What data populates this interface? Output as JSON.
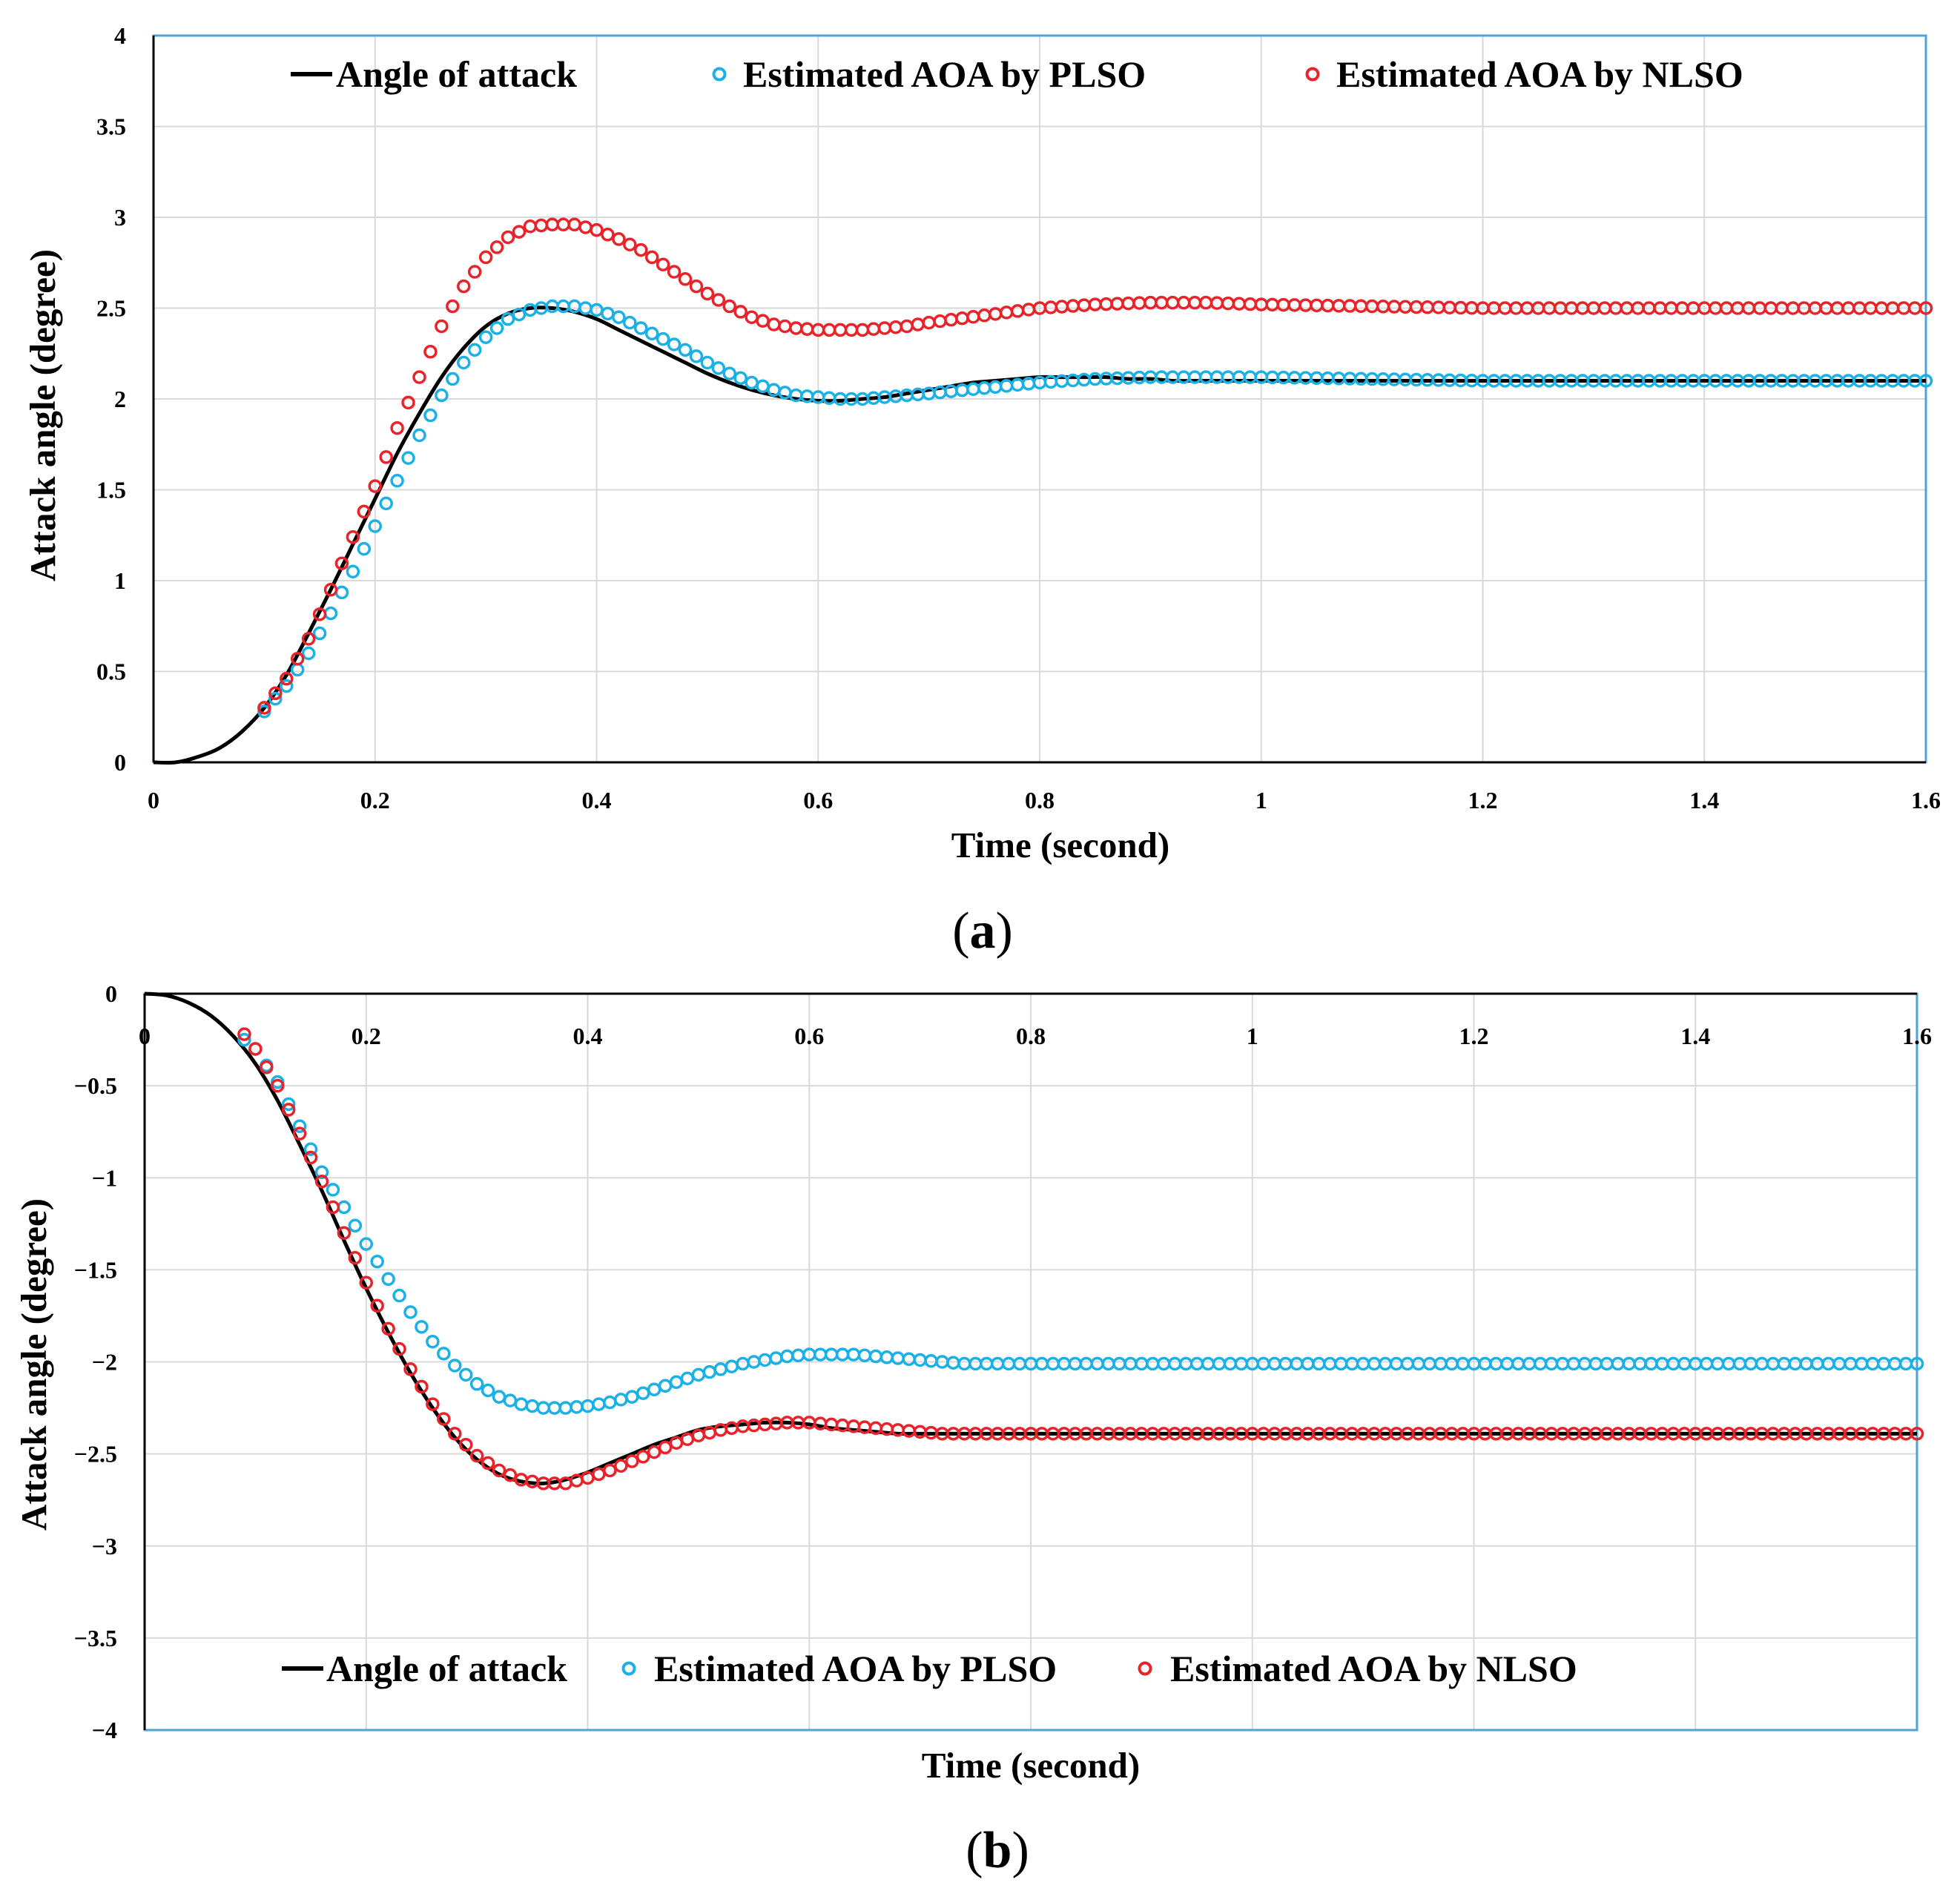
{
  "chart_data": [
    {
      "type": "line",
      "panel": "a",
      "panel_label": "a",
      "title": "",
      "xlabel": "Time (second)",
      "ylabel": "Attack angle (degree)",
      "xlim": [
        0,
        1.6
      ],
      "ylim": [
        0,
        4
      ],
      "xticks": [
        "0",
        "0.2",
        "0.4",
        "0.6",
        "0.8",
        "1",
        "1.2",
        "1.4",
        "1.6"
      ],
      "yticks": [
        "0",
        "0.5",
        "1",
        "1.5",
        "2",
        "2.5",
        "3",
        "3.5",
        "4"
      ],
      "legend_position": "top",
      "series": [
        {
          "name": "Angle of attack",
          "style": "line",
          "color": "#000000",
          "x": [
            0,
            0.02,
            0.04,
            0.06,
            0.08,
            0.1,
            0.12,
            0.14,
            0.16,
            0.18,
            0.2,
            0.22,
            0.24,
            0.26,
            0.28,
            0.3,
            0.32,
            0.34,
            0.36,
            0.38,
            0.4,
            0.42,
            0.44,
            0.46,
            0.48,
            0.5,
            0.52,
            0.54,
            0.56,
            0.58,
            0.6,
            0.62,
            0.64,
            0.66,
            0.68,
            0.7,
            0.72,
            0.74,
            0.76,
            0.78,
            0.8,
            0.82,
            0.84,
            0.86,
            0.88,
            0.9,
            0.92,
            0.94,
            0.96,
            0.98,
            1.0,
            1.05,
            1.1,
            1.15,
            1.2,
            1.25,
            1.3,
            1.35,
            1.4,
            1.45,
            1.5,
            1.55,
            1.6
          ],
          "y": [
            0,
            0.0,
            0.03,
            0.08,
            0.17,
            0.3,
            0.48,
            0.71,
            0.95,
            1.2,
            1.45,
            1.7,
            1.92,
            2.12,
            2.28,
            2.4,
            2.47,
            2.5,
            2.5,
            2.48,
            2.44,
            2.38,
            2.32,
            2.26,
            2.2,
            2.14,
            2.09,
            2.05,
            2.02,
            2.0,
            1.99,
            1.99,
            2.0,
            2.01,
            2.03,
            2.05,
            2.07,
            2.09,
            2.1,
            2.11,
            2.12,
            2.12,
            2.12,
            2.12,
            2.11,
            2.11,
            2.1,
            2.1,
            2.1,
            2.1,
            2.1,
            2.1,
            2.1,
            2.1,
            2.1,
            2.1,
            2.1,
            2.1,
            2.1,
            2.1,
            2.1,
            2.1,
            2.1
          ]
        },
        {
          "name": "Estimated AOA by PLSO",
          "style": "markers",
          "color": "#1bb0e6",
          "x": [
            0.1,
            0.12,
            0.14,
            0.16,
            0.18,
            0.2,
            0.22,
            0.24,
            0.26,
            0.28,
            0.3,
            0.32,
            0.34,
            0.36,
            0.38,
            0.4,
            0.42,
            0.44,
            0.46,
            0.48,
            0.5,
            0.52,
            0.54,
            0.56,
            0.58,
            0.6,
            0.62,
            0.64,
            0.66,
            0.68,
            0.7,
            0.75,
            0.8,
            0.85,
            0.9,
            0.95,
            1.0,
            1.1,
            1.2,
            1.3,
            1.4,
            1.5,
            1.6
          ],
          "y": [
            0.28,
            0.42,
            0.6,
            0.82,
            1.05,
            1.3,
            1.55,
            1.8,
            2.02,
            2.2,
            2.34,
            2.44,
            2.49,
            2.51,
            2.51,
            2.49,
            2.45,
            2.39,
            2.33,
            2.27,
            2.2,
            2.14,
            2.09,
            2.05,
            2.02,
            2.01,
            2.0,
            2.0,
            2.01,
            2.02,
            2.03,
            2.06,
            2.09,
            2.11,
            2.12,
            2.12,
            2.12,
            2.11,
            2.1,
            2.1,
            2.1,
            2.1,
            2.1
          ]
        },
        {
          "name": "Estimated AOA by NLSO",
          "style": "markers",
          "color": "#e8232a",
          "x": [
            0.1,
            0.12,
            0.14,
            0.16,
            0.18,
            0.2,
            0.22,
            0.24,
            0.26,
            0.28,
            0.3,
            0.32,
            0.34,
            0.36,
            0.38,
            0.4,
            0.42,
            0.44,
            0.46,
            0.48,
            0.5,
            0.52,
            0.54,
            0.56,
            0.58,
            0.6,
            0.62,
            0.64,
            0.66,
            0.68,
            0.7,
            0.75,
            0.8,
            0.85,
            0.9,
            0.95,
            1.0,
            1.1,
            1.2,
            1.3,
            1.4,
            1.5,
            1.6
          ],
          "y": [
            0.3,
            0.46,
            0.68,
            0.95,
            1.24,
            1.52,
            1.84,
            2.12,
            2.4,
            2.62,
            2.78,
            2.89,
            2.95,
            2.96,
            2.96,
            2.93,
            2.88,
            2.82,
            2.74,
            2.66,
            2.58,
            2.51,
            2.45,
            2.41,
            2.39,
            2.38,
            2.38,
            2.38,
            2.39,
            2.4,
            2.42,
            2.46,
            2.5,
            2.52,
            2.53,
            2.53,
            2.52,
            2.51,
            2.5,
            2.5,
            2.5,
            2.5,
            2.5
          ]
        }
      ]
    },
    {
      "type": "line",
      "panel": "b",
      "panel_label": "b",
      "title": "",
      "xlabel": "Time (second)",
      "ylabel": "Attack angle (degree)",
      "xlim": [
        0,
        1.6
      ],
      "ylim": [
        -4,
        0
      ],
      "xticks": [
        "0",
        "0.2",
        "0.4",
        "0.6",
        "0.8",
        "1",
        "1.2",
        "1.4",
        "1.6"
      ],
      "yticks": [
        "0",
        "−0.5",
        "−1",
        "−1.5",
        "−2",
        "−2.5",
        "−3",
        "−3.5",
        "−4"
      ],
      "legend_position": "bottom",
      "series": [
        {
          "name": "Angle of attack",
          "style": "line",
          "color": "#000000",
          "x": [
            0,
            0.02,
            0.04,
            0.06,
            0.08,
            0.1,
            0.12,
            0.14,
            0.16,
            0.18,
            0.2,
            0.22,
            0.24,
            0.26,
            0.28,
            0.3,
            0.32,
            0.34,
            0.36,
            0.38,
            0.4,
            0.42,
            0.44,
            0.46,
            0.48,
            0.5,
            0.52,
            0.54,
            0.56,
            0.58,
            0.6,
            0.62,
            0.64,
            0.66,
            0.68,
            0.7,
            0.72,
            0.74,
            0.76,
            0.78,
            0.8,
            0.85,
            0.9,
            0.95,
            1.0,
            1.1,
            1.2,
            1.3,
            1.4,
            1.5,
            1.6
          ],
          "y": [
            0,
            -0.01,
            -0.05,
            -0.12,
            -0.23,
            -0.38,
            -0.58,
            -0.82,
            -1.07,
            -1.34,
            -1.6,
            -1.84,
            -2.06,
            -2.25,
            -2.41,
            -2.53,
            -2.61,
            -2.65,
            -2.66,
            -2.64,
            -2.6,
            -2.55,
            -2.5,
            -2.45,
            -2.41,
            -2.37,
            -2.35,
            -2.34,
            -2.33,
            -2.33,
            -2.34,
            -2.36,
            -2.37,
            -2.38,
            -2.39,
            -2.39,
            -2.39,
            -2.39,
            -2.39,
            -2.39,
            -2.39,
            -2.39,
            -2.39,
            -2.39,
            -2.39,
            -2.39,
            -2.39,
            -2.39,
            -2.39,
            -2.39,
            -2.39
          ]
        },
        {
          "name": "Estimated AOA by PLSO",
          "style": "markers",
          "color": "#1bb0e6",
          "x": [
            0.09,
            0.1,
            0.12,
            0.14,
            0.16,
            0.18,
            0.2,
            0.22,
            0.24,
            0.26,
            0.28,
            0.3,
            0.32,
            0.34,
            0.36,
            0.38,
            0.4,
            0.42,
            0.44,
            0.46,
            0.48,
            0.5,
            0.52,
            0.54,
            0.56,
            0.58,
            0.6,
            0.62,
            0.64,
            0.66,
            0.68,
            0.7,
            0.72,
            0.74,
            0.76,
            0.8,
            0.85,
            0.9,
            0.95,
            1.0,
            1.1,
            1.2,
            1.3,
            1.4,
            1.5,
            1.6
          ],
          "y": [
            -0.25,
            -0.3,
            -0.48,
            -0.72,
            -0.97,
            -1.16,
            -1.36,
            -1.55,
            -1.73,
            -1.89,
            -2.02,
            -2.12,
            -2.19,
            -2.23,
            -2.25,
            -2.25,
            -2.24,
            -2.22,
            -2.19,
            -2.15,
            -2.11,
            -2.07,
            -2.04,
            -2.01,
            -1.99,
            -1.97,
            -1.96,
            -1.96,
            -1.96,
            -1.97,
            -1.98,
            -1.99,
            -2.0,
            -2.01,
            -2.01,
            -2.01,
            -2.01,
            -2.01,
            -2.01,
            -2.01,
            -2.01,
            -2.01,
            -2.01,
            -2.01,
            -2.01,
            -2.01
          ]
        },
        {
          "name": "Estimated AOA by NLSO",
          "style": "markers",
          "color": "#e8232a",
          "x": [
            0.09,
            0.1,
            0.12,
            0.14,
            0.16,
            0.18,
            0.2,
            0.22,
            0.24,
            0.26,
            0.28,
            0.3,
            0.32,
            0.34,
            0.36,
            0.38,
            0.4,
            0.42,
            0.44,
            0.46,
            0.48,
            0.5,
            0.52,
            0.54,
            0.56,
            0.58,
            0.6,
            0.62,
            0.64,
            0.66,
            0.68,
            0.7,
            0.72,
            0.74,
            0.76,
            0.8,
            0.85,
            0.9,
            0.95,
            1.0,
            1.1,
            1.2,
            1.3,
            1.4,
            1.5,
            1.6
          ],
          "y": [
            -0.22,
            -0.3,
            -0.5,
            -0.76,
            -1.02,
            -1.3,
            -1.57,
            -1.82,
            -2.04,
            -2.23,
            -2.39,
            -2.51,
            -2.59,
            -2.64,
            -2.66,
            -2.66,
            -2.63,
            -2.59,
            -2.54,
            -2.49,
            -2.44,
            -2.4,
            -2.37,
            -2.35,
            -2.34,
            -2.33,
            -2.33,
            -2.34,
            -2.35,
            -2.36,
            -2.37,
            -2.38,
            -2.39,
            -2.39,
            -2.39,
            -2.39,
            -2.39,
            -2.39,
            -2.39,
            -2.39,
            -2.39,
            -2.39,
            -2.39,
            -2.39,
            -2.39,
            -2.39
          ]
        }
      ]
    }
  ],
  "colors": {
    "frame": "#4fa3d6",
    "grid": "#d9d9d9",
    "axis": "#000000"
  }
}
